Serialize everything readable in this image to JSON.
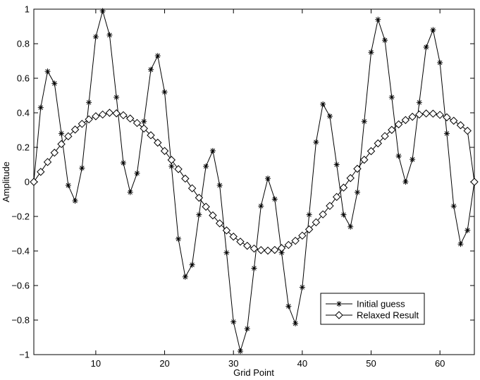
{
  "chart_data": {
    "type": "line",
    "xlabel": "Grid Point",
    "ylabel": "Amplitude",
    "xlim": [
      1,
      65
    ],
    "ylim": [
      -1,
      1
    ],
    "xticks": [
      10,
      20,
      30,
      40,
      50,
      60
    ],
    "yticks": [
      -1,
      -0.8,
      -0.6,
      -0.4,
      -0.2,
      0,
      0.2,
      0.4,
      0.6,
      0.8,
      1
    ],
    "ytick_labels": [
      "−1",
      "−0.8",
      "−0.6",
      "−0.4",
      "−0.2",
      "0",
      "0.2",
      "0.4",
      "0.6",
      "0.8",
      "1"
    ],
    "grid": false,
    "legend_position": "bottom-right",
    "line_color": "#000000",
    "series": [
      {
        "name": "Initial guess",
        "marker": "asterisk",
        "x": [
          1,
          2,
          3,
          4,
          5,
          6,
          7,
          8,
          9,
          10,
          11,
          12,
          13,
          14,
          15,
          16,
          17,
          18,
          19,
          20,
          21,
          22,
          23,
          24,
          25,
          26,
          27,
          28,
          29,
          30,
          31,
          32,
          33,
          34,
          35,
          36,
          37,
          38,
          39,
          40,
          41,
          42,
          43,
          44,
          45,
          46,
          47,
          48,
          49,
          50,
          51,
          52,
          53,
          54,
          55,
          56,
          57,
          58,
          59,
          60,
          61,
          62,
          63,
          64,
          65
        ],
        "values": [
          0,
          0.43,
          0.64,
          0.57,
          0.28,
          -0.02,
          -0.11,
          0.08,
          0.46,
          0.84,
          0.99,
          0.85,
          0.49,
          0.11,
          -0.06,
          0.05,
          0.35,
          0.65,
          0.73,
          0.52,
          0.09,
          -0.33,
          -0.55,
          -0.48,
          -0.19,
          0.09,
          0.18,
          -0.02,
          -0.41,
          -0.81,
          -0.98,
          -0.85,
          -0.5,
          -0.14,
          0.02,
          -0.1,
          -0.41,
          -0.72,
          -0.82,
          -0.61,
          -0.19,
          0.23,
          0.45,
          0.38,
          0.1,
          -0.19,
          -0.26,
          -0.06,
          0.35,
          0.75,
          0.94,
          0.82,
          0.49,
          0.15,
          0,
          0.13,
          0.46,
          0.78,
          0.88,
          0.69,
          0.28,
          -0.14,
          -0.36,
          -0.28,
          0
        ]
      },
      {
        "name": "Relaxed Result",
        "marker": "diamond",
        "x": [
          1,
          2,
          3,
          4,
          5,
          6,
          7,
          8,
          9,
          10,
          11,
          12,
          13,
          14,
          15,
          16,
          17,
          18,
          19,
          20,
          21,
          22,
          23,
          24,
          25,
          26,
          27,
          28,
          29,
          30,
          31,
          32,
          33,
          34,
          35,
          36,
          37,
          38,
          39,
          40,
          41,
          42,
          43,
          44,
          45,
          46,
          47,
          48,
          49,
          50,
          51,
          52,
          53,
          54,
          55,
          56,
          57,
          58,
          59,
          60,
          61,
          62,
          63,
          64,
          65
        ],
        "values": [
          0,
          0.058,
          0.115,
          0.169,
          0.219,
          0.264,
          0.303,
          0.336,
          0.362,
          0.38,
          0.39,
          0.4,
          0.397,
          0.386,
          0.367,
          0.341,
          0.309,
          0.27,
          0.227,
          0.179,
          0.127,
          0.074,
          0.019,
          -0.037,
          -0.092,
          -0.144,
          -0.194,
          -0.24,
          -0.281,
          -0.317,
          -0.346,
          -0.37,
          -0.386,
          -0.395,
          -0.398,
          -0.394,
          -0.383,
          -0.365,
          -0.341,
          -0.311,
          -0.275,
          -0.234,
          -0.188,
          -0.139,
          -0.087,
          -0.033,
          0.022,
          0.076,
          0.128,
          0.178,
          0.223,
          0.265,
          0.301,
          0.333,
          0.358,
          0.377,
          0.39,
          0.396,
          0.395,
          0.388,
          0.374,
          0.354,
          0.328,
          0.296,
          0
        ]
      }
    ]
  }
}
